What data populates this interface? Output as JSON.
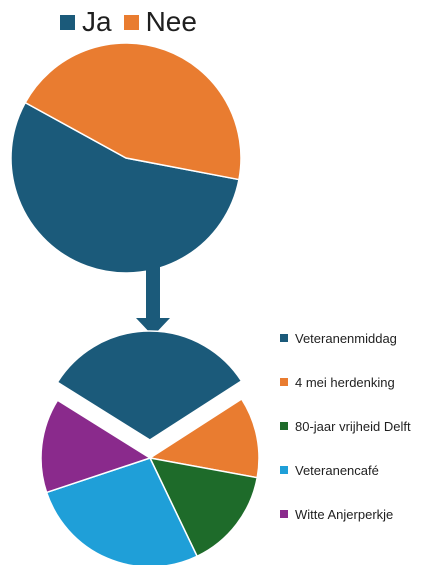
{
  "chart_data": [
    {
      "type": "pie",
      "series": [
        {
          "name": "Ja",
          "value": 55,
          "color": "#1b5a7a"
        },
        {
          "name": "Nee",
          "value": 45,
          "color": "#e97c30"
        }
      ],
      "legend_position": "top"
    },
    {
      "type": "pie",
      "series": [
        {
          "name": "Veteranenmiddag",
          "value": 32,
          "color": "#1b5a7a"
        },
        {
          "name": "4 mei herdenking",
          "value": 12,
          "color": "#e97c30"
        },
        {
          "name": "80-jaar vrijheid Delft",
          "value": 15,
          "color": "#1e6b2a"
        },
        {
          "name": "Veteranencafé",
          "value": 27,
          "color": "#1f9fd8"
        },
        {
          "name": "Witte Anjerperkje",
          "value": 14,
          "color": "#8a2a8c"
        }
      ],
      "exploded": "Veteranenmiddag",
      "legend_position": "right"
    }
  ],
  "arrow_color": "#1b5a7a"
}
